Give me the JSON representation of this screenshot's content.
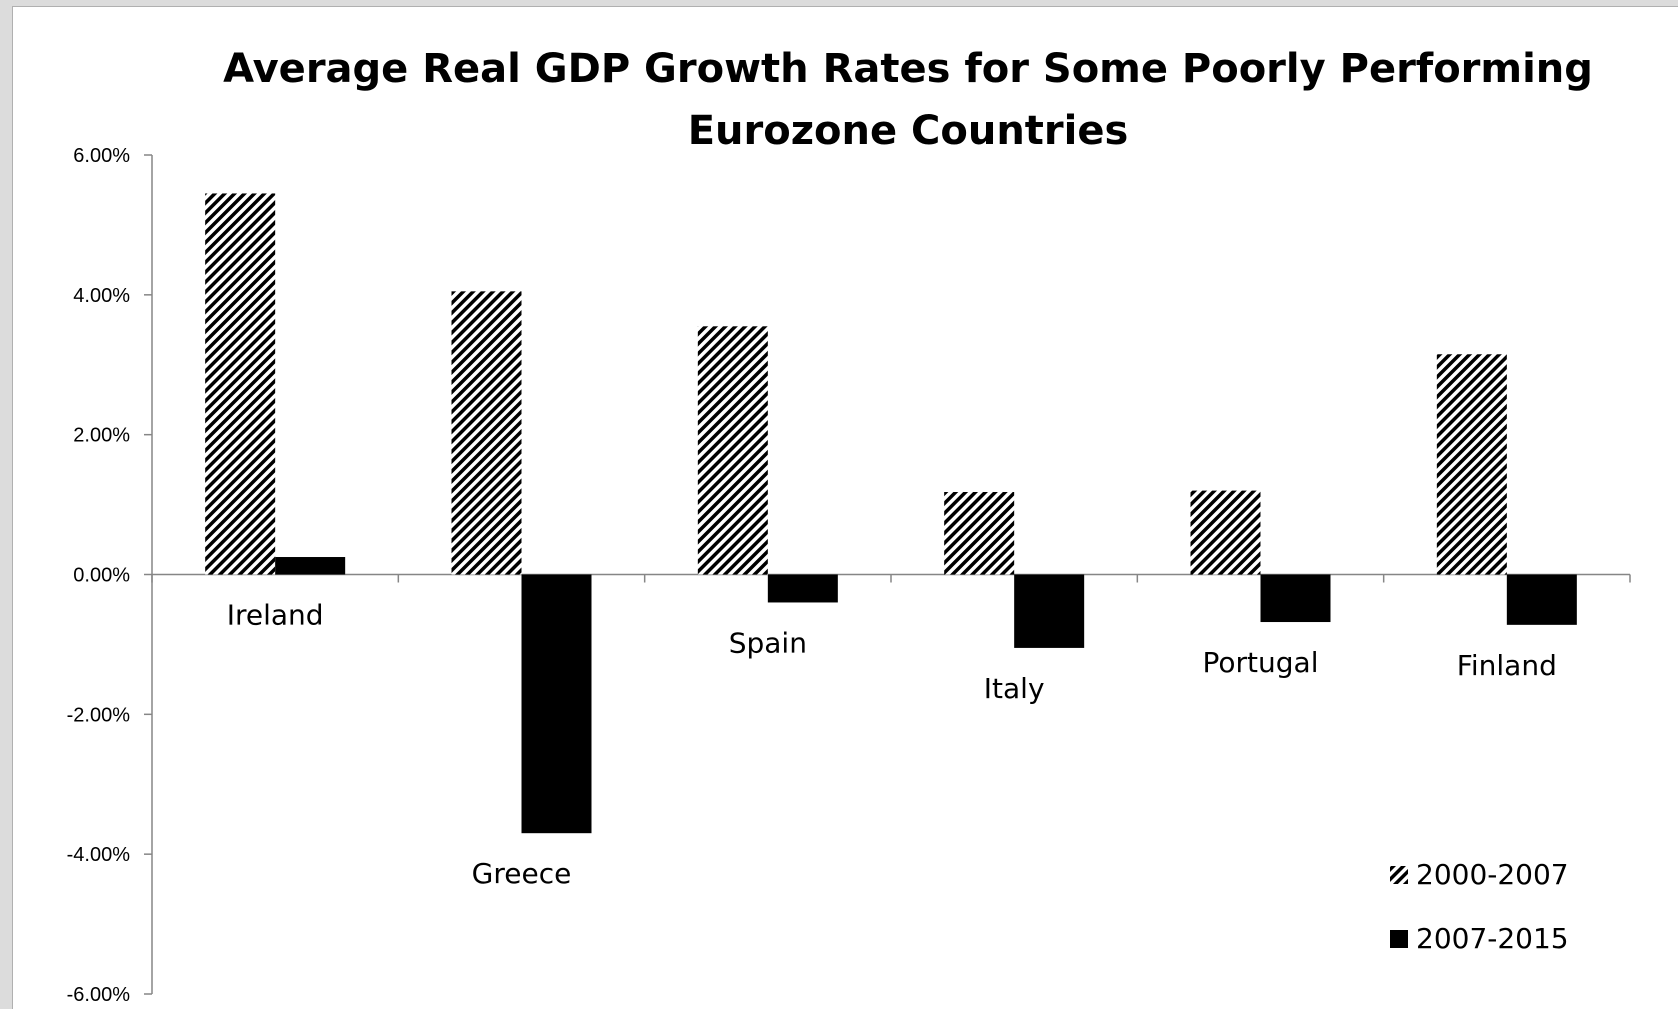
{
  "chart_data": {
    "type": "bar",
    "title_lines": [
      "Average Real GDP Growth Rates for Some Poorly Performing",
      "Eurozone Countries"
    ],
    "categories": [
      "Ireland",
      "Greece",
      "Spain",
      "Italy",
      "Portugal",
      "Finland"
    ],
    "series": [
      {
        "name": "2000-2007",
        "values": [
          5.45,
          4.05,
          3.55,
          1.18,
          1.2,
          3.15
        ]
      },
      {
        "name": "2007-2015",
        "values": [
          0.25,
          -3.7,
          -0.4,
          -1.05,
          -0.68,
          -0.72
        ]
      }
    ],
    "ylim": [
      -6,
      6
    ],
    "yticks": [
      "6.00%",
      "4.00%",
      "2.00%",
      "0.00%",
      "-2.00%",
      "-4.00%",
      "-6.00%"
    ],
    "legend_position": "bottom-right",
    "grid": false,
    "series_styles": {
      "2000-2007": "diagonal-hatch",
      "2007-2015": "solid-black"
    }
  }
}
